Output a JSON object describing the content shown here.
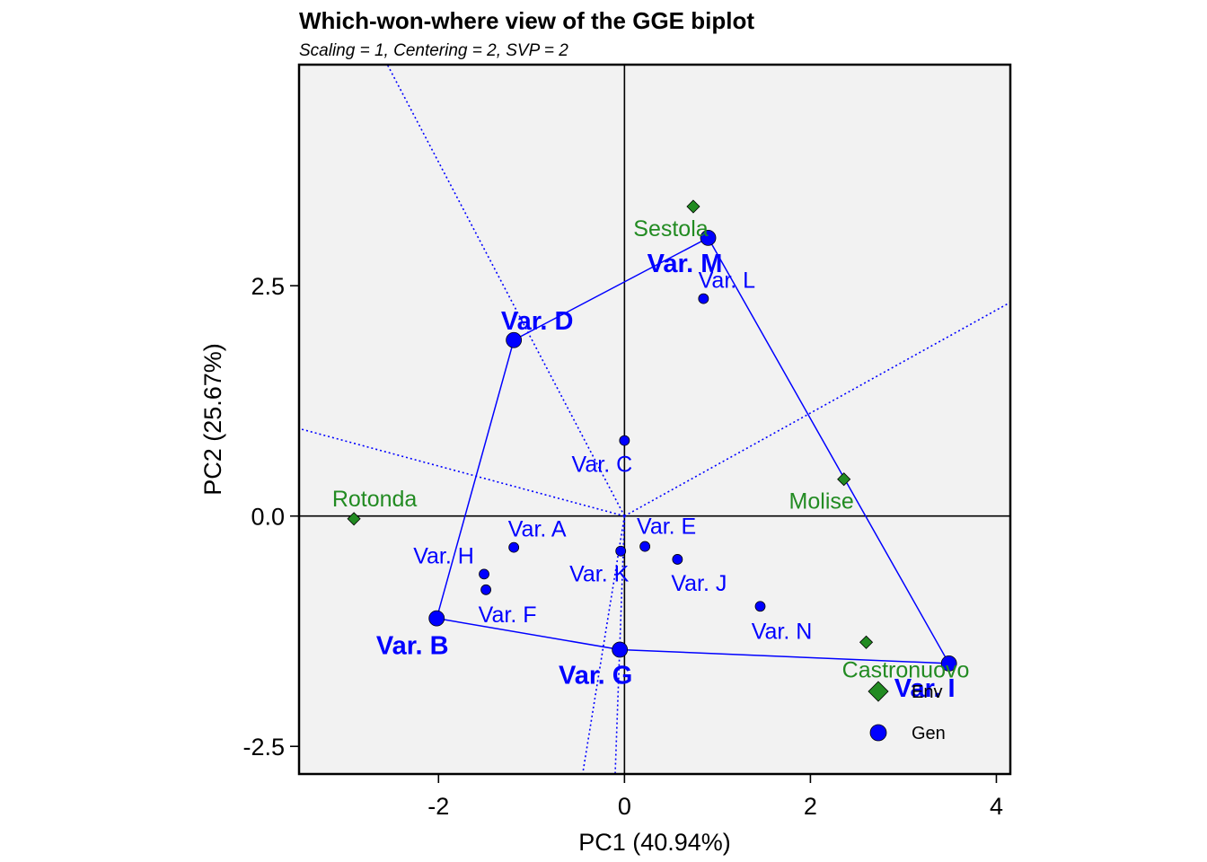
{
  "chart_data": {
    "type": "scatter",
    "title": "Which-won-where view of the GGE biplot",
    "subtitle": "Scaling = 1, Centering = 2, SVP = 2",
    "xlabel": "PC1 (40.94%)",
    "ylabel": "PC2 (25.67%)",
    "xlim": [
      -3.5,
      4.15
    ],
    "ylim": [
      -2.8,
      4.9
    ],
    "xticks": [
      -2,
      0,
      2,
      4
    ],
    "xtick_labels": [
      "-2",
      "0",
      "2",
      "4"
    ],
    "yticks": [
      -2.5,
      0.0,
      2.5
    ],
    "ytick_labels": [
      "-2.5",
      "0.0",
      "2.5"
    ],
    "grid": false,
    "legend": {
      "position": "bottom-right",
      "entries": [
        {
          "label": "Env",
          "marker": "diamond",
          "color": "#228B22"
        },
        {
          "label": "Gen",
          "marker": "circle",
          "color": "#0000FF"
        }
      ]
    },
    "colors": {
      "environment": "#228B22",
      "genotype": "#0000FF",
      "panel_background": "#F2F2F2"
    },
    "environments": [
      {
        "name": "Sestola",
        "x": 0.74,
        "y": 3.36
      },
      {
        "name": "Rotonda",
        "x": -2.91,
        "y": -0.03
      },
      {
        "name": "Molise",
        "x": 2.36,
        "y": 0.4
      },
      {
        "name": "Castronuovo",
        "x": 2.6,
        "y": -1.37
      }
    ],
    "genotypes": [
      {
        "name": "Var. M",
        "x": 0.9,
        "y": 3.02,
        "vertex": true
      },
      {
        "name": "Var. D",
        "x": -1.19,
        "y": 1.91,
        "vertex": true
      },
      {
        "name": "Var. B",
        "x": -2.02,
        "y": -1.11,
        "vertex": true
      },
      {
        "name": "Var. G",
        "x": -0.05,
        "y": -1.45,
        "vertex": true
      },
      {
        "name": "Var. I",
        "x": 3.49,
        "y": -1.6,
        "vertex": true
      },
      {
        "name": "Var. L",
        "x": 0.85,
        "y": 2.36,
        "vertex": false
      },
      {
        "name": "Var. C",
        "x": 0.0,
        "y": 0.82,
        "vertex": false
      },
      {
        "name": "Var. A",
        "x": -1.19,
        "y": -0.34,
        "vertex": false
      },
      {
        "name": "Var. E",
        "x": 0.22,
        "y": -0.33,
        "vertex": false
      },
      {
        "name": "Var. K",
        "x": -0.04,
        "y": -0.38,
        "vertex": false
      },
      {
        "name": "Var. J",
        "x": 0.57,
        "y": -0.47,
        "vertex": false
      },
      {
        "name": "Var. H",
        "x": -1.51,
        "y": -0.63,
        "vertex": false
      },
      {
        "name": "Var. F",
        "x": -1.49,
        "y": -0.8,
        "vertex": false
      },
      {
        "name": "Var. N",
        "x": 1.46,
        "y": -0.98,
        "vertex": false
      }
    ],
    "polygon": [
      "Var. M",
      "Var. I",
      "Var. G",
      "Var. B",
      "Var. D"
    ],
    "sector_lines": [
      {
        "to": [
          -2.55,
          4.9
        ]
      },
      {
        "to": [
          4.15,
          2.32
        ]
      },
      {
        "to": [
          -3.5,
          0.95
        ]
      },
      {
        "to": [
          -0.45,
          -2.8
        ]
      },
      {
        "to": [
          -0.1,
          -2.8
        ]
      }
    ]
  }
}
